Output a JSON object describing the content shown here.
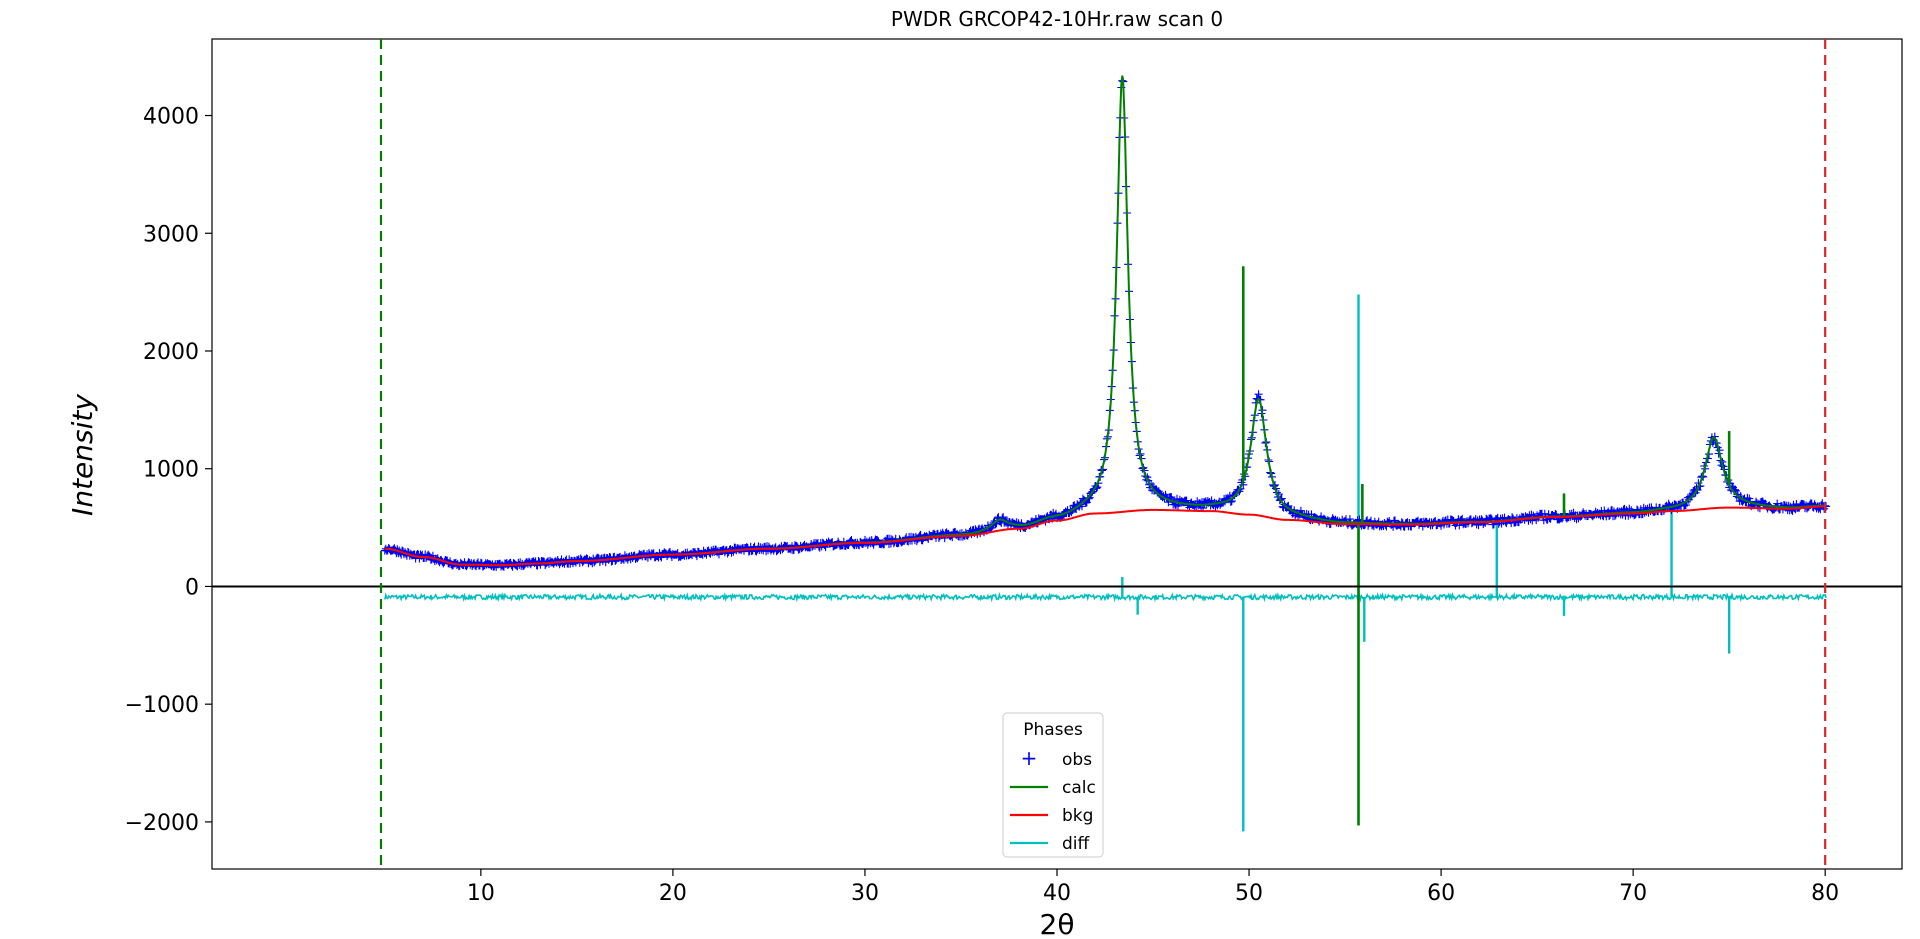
{
  "chart_data": {
    "type": "line",
    "title": "PWDR GRCOP42-10Hr.raw scan 0",
    "xlabel": "2θ",
    "ylabel": "Intensity",
    "xlim": [
      -4,
      84
    ],
    "ylim": [
      -2400,
      4650
    ],
    "xticks": [
      10,
      20,
      30,
      40,
      50,
      60,
      70,
      80
    ],
    "yticks": [
      -2000,
      -1000,
      0,
      1000,
      2000,
      3000,
      4000
    ],
    "ytick_labels": [
      "−2000",
      "−1000",
      "0",
      "1000",
      "2000",
      "3000",
      "4000"
    ],
    "grid": false,
    "zero_line": 0,
    "limit_lines": [
      {
        "x": 4.8,
        "color": "#008000",
        "style": "dashed"
      },
      {
        "x": 80.0,
        "color": "#d62728",
        "style": "dashed"
      }
    ],
    "legend": {
      "title": "Phases",
      "placement": "lower-center",
      "entries": [
        {
          "label": "obs",
          "color": "#0000ff",
          "marker": "+"
        },
        {
          "label": "calc",
          "color": "#008000",
          "marker": "line"
        },
        {
          "label": "bkg",
          "color": "#ff0000",
          "marker": "line"
        },
        {
          "label": "diff",
          "color": "#00bfbf",
          "marker": "line"
        }
      ]
    },
    "background_points": [
      [
        5,
        320
      ],
      [
        7,
        250
      ],
      [
        9,
        185
      ],
      [
        11,
        180
      ],
      [
        13,
        195
      ],
      [
        15,
        215
      ],
      [
        20,
        270
      ],
      [
        25,
        320
      ],
      [
        30,
        370
      ],
      [
        35,
        430
      ],
      [
        38,
        490
      ],
      [
        40,
        560
      ],
      [
        42,
        620
      ],
      [
        45,
        650
      ],
      [
        48,
        640
      ],
      [
        50,
        610
      ],
      [
        52,
        565
      ],
      [
        55,
        530
      ],
      [
        58,
        525
      ],
      [
        62,
        545
      ],
      [
        66,
        590
      ],
      [
        70,
        620
      ],
      [
        72,
        640
      ],
      [
        75,
        670
      ],
      [
        78,
        660
      ],
      [
        80,
        680
      ]
    ],
    "peaks": [
      {
        "x": 37.0,
        "height": 80,
        "width": 0.5
      },
      {
        "x": 43.4,
        "height": 3700,
        "width": 0.35
      },
      {
        "x": 50.5,
        "height": 980,
        "width": 0.5
      },
      {
        "x": 74.2,
        "height": 600,
        "width": 0.55
      }
    ],
    "calc_spikes": [
      {
        "x": 49.7,
        "y": 2720
      },
      {
        "x": 55.7,
        "y": -2030
      },
      {
        "x": 55.9,
        "y": 870
      },
      {
        "x": 66.4,
        "y": 790
      },
      {
        "x": 75.0,
        "y": 1320
      }
    ],
    "diff_baseline": -90,
    "diff_spikes": [
      {
        "x": 43.4,
        "y": 80
      },
      {
        "x": 44.2,
        "y": -240
      },
      {
        "x": 49.7,
        "y": -2080
      },
      {
        "x": 55.7,
        "y": 2480
      },
      {
        "x": 56.0,
        "y": -470
      },
      {
        "x": 62.9,
        "y": 560
      },
      {
        "x": 66.4,
        "y": -250
      },
      {
        "x": 72.0,
        "y": 690
      },
      {
        "x": 75.0,
        "y": -570
      }
    ]
  }
}
